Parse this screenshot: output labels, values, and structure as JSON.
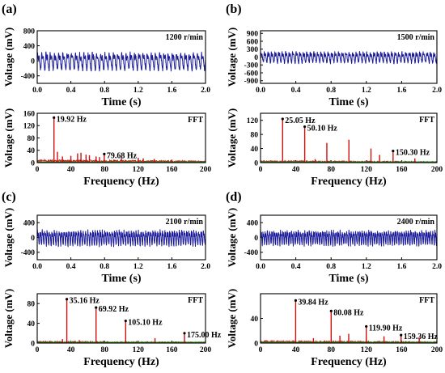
{
  "colors": {
    "time_signal": "#1a1a9a",
    "fft_line": "#cc1111",
    "fft_fill": "#f6c4de",
    "fft_baseline": "#1a8a1a",
    "axis": "#000000"
  },
  "chart_data": [
    {
      "panel_label": "(a)",
      "time": {
        "type": "line",
        "annotation": "1200 r/min",
        "xlabel": "Time (s)",
        "ylabel": "Voltage (mV)",
        "xlim": [
          0,
          2.0
        ],
        "ylim": [
          -600,
          800
        ],
        "xticks": [
          0,
          0.4,
          0.8,
          1.2,
          1.6,
          2.0
        ],
        "xtick_labels": [
          "0.0",
          "0.4",
          "0.8",
          "1.2",
          "1.6",
          "2.0"
        ],
        "yticks": [
          -400,
          0,
          400,
          800
        ],
        "ytick_labels": [
          "-400",
          "0",
          "400",
          "800"
        ],
        "amplitude": 300,
        "rotation_hz": 20
      },
      "fft": {
        "type": "line",
        "annotation": "FFT",
        "xlabel": "Frequency (Hz)",
        "ylabel": "Voltage (mV)",
        "xlim": [
          0,
          200
        ],
        "ylim": [
          0,
          160
        ],
        "xticks": [
          0,
          40,
          80,
          120,
          160,
          200
        ],
        "xtick_labels": [
          "0",
          "40",
          "80",
          "120",
          "160",
          "200"
        ],
        "yticks": [
          0,
          40,
          80,
          120,
          160
        ],
        "ytick_labels": [
          "0",
          "40",
          "80",
          "120",
          "160"
        ],
        "noise_level": 10,
        "peaks": [
          {
            "f": 19.92,
            "v": 146,
            "label": "19.92 Hz"
          },
          {
            "f": 79.68,
            "v": 28,
            "label": "79.68 Hz"
          },
          {
            "f": 24,
            "v": 35
          },
          {
            "f": 30,
            "v": 20
          },
          {
            "f": 40,
            "v": 22
          },
          {
            "f": 48,
            "v": 30
          },
          {
            "f": 52,
            "v": 32
          },
          {
            "f": 58,
            "v": 26
          },
          {
            "f": 62,
            "v": 24
          },
          {
            "f": 70,
            "v": 20
          },
          {
            "f": 74,
            "v": 18
          },
          {
            "f": 100,
            "v": 15
          },
          {
            "f": 120,
            "v": 16
          },
          {
            "f": 126,
            "v": 14
          },
          {
            "f": 139,
            "v": 12
          },
          {
            "f": 160,
            "v": 10
          }
        ]
      }
    },
    {
      "panel_label": "(b)",
      "time": {
        "type": "line",
        "annotation": "1500 r/min",
        "xlabel": "Time (s)",
        "ylabel": "Voltage (mV)",
        "xlim": [
          0,
          2.0
        ],
        "ylim": [
          -1000,
          1000
        ],
        "xticks": [
          0,
          0.4,
          0.8,
          1.2,
          1.6,
          2.0
        ],
        "xtick_labels": [
          "0.0",
          "0.4",
          "0.8",
          "1.2",
          "1.6",
          "2.0"
        ],
        "yticks": [
          -900,
          -600,
          -300,
          0,
          300,
          600,
          900
        ],
        "ytick_labels": [
          "-900",
          "-600",
          "-300",
          "0",
          "300",
          "600",
          "900"
        ],
        "amplitude": 280,
        "rotation_hz": 25
      },
      "fft": {
        "type": "line",
        "annotation": "FFT",
        "xlabel": "Frequency (Hz)",
        "ylabel": "Voltage (mV)",
        "xlim": [
          0,
          200
        ],
        "ylim": [
          0,
          140
        ],
        "xticks": [
          0,
          40,
          80,
          120,
          160,
          200
        ],
        "xtick_labels": [
          "0",
          "40",
          "80",
          "120",
          "160",
          "200"
        ],
        "yticks": [
          0,
          40,
          80,
          120
        ],
        "ytick_labels": [
          "0",
          "40",
          "80",
          "120"
        ],
        "noise_level": 6,
        "peaks": [
          {
            "f": 25.05,
            "v": 124,
            "label": "25.05 Hz"
          },
          {
            "f": 50.1,
            "v": 102,
            "label": "50.10 Hz"
          },
          {
            "f": 150.3,
            "v": 33,
            "label": "150.30 Hz"
          },
          {
            "f": 75.2,
            "v": 56
          },
          {
            "f": 100.2,
            "v": 65
          },
          {
            "f": 125.2,
            "v": 40
          },
          {
            "f": 135,
            "v": 22
          },
          {
            "f": 175,
            "v": 12
          },
          {
            "f": 62,
            "v": 10
          }
        ]
      }
    },
    {
      "panel_label": "(c)",
      "time": {
        "type": "line",
        "annotation": "2100 r/min",
        "xlabel": "Time (s)",
        "ylabel": "Voltage (mV)",
        "xlim": [
          0,
          2.0
        ],
        "ylim": [
          -600,
          600
        ],
        "xticks": [
          0,
          0.4,
          0.8,
          1.2,
          1.6,
          2.0
        ],
        "xtick_labels": [
          "0.0",
          "0.4",
          "0.8",
          "1.2",
          "1.6",
          "2.0"
        ],
        "yticks": [
          -400,
          0,
          400
        ],
        "ytick_labels": [
          "-400",
          "0",
          "400"
        ],
        "amplitude": 270,
        "rotation_hz": 35
      },
      "fft": {
        "type": "line",
        "annotation": "FFT",
        "xlabel": "Frequency (Hz)",
        "ylabel": "Voltage (mV)",
        "xlim": [
          0,
          200
        ],
        "ylim": [
          0,
          100
        ],
        "xticks": [
          0,
          40,
          80,
          120,
          160,
          200
        ],
        "xtick_labels": [
          "0",
          "40",
          "80",
          "120",
          "160",
          "200"
        ],
        "yticks": [
          0,
          40,
          80
        ],
        "ytick_labels": [
          "0",
          "40",
          "80"
        ],
        "noise_level": 4,
        "peaks": [
          {
            "f": 35.16,
            "v": 89,
            "label": "35.16 Hz"
          },
          {
            "f": 69.92,
            "v": 72,
            "label": "69.92 Hz"
          },
          {
            "f": 105.1,
            "v": 45,
            "label": "105.10 Hz"
          },
          {
            "f": 175.0,
            "v": 20,
            "label": "175.00 Hz"
          },
          {
            "f": 140,
            "v": 10
          },
          {
            "f": 30,
            "v": 8
          },
          {
            "f": 50,
            "v": 6
          }
        ]
      }
    },
    {
      "panel_label": "(d)",
      "time": {
        "type": "line",
        "annotation": "2400 r/min",
        "xlabel": "Time (s)",
        "ylabel": "Voltage (mV)",
        "xlim": [
          0,
          2.0
        ],
        "ylim": [
          -600,
          600
        ],
        "xticks": [
          0,
          0.4,
          0.8,
          1.2,
          1.6,
          2.0
        ],
        "xtick_labels": [
          "0.0",
          "0.4",
          "0.8",
          "1.2",
          "1.6",
          "2.0"
        ],
        "yticks": [
          -400,
          0,
          400
        ],
        "ytick_labels": [
          "-400",
          "0",
          "400"
        ],
        "amplitude": 260,
        "rotation_hz": 40
      },
      "fft": {
        "type": "line",
        "annotation": "FFT",
        "xlabel": "Frequency (Hz)",
        "ylabel": "Voltage (mV)",
        "xlim": [
          0,
          200
        ],
        "ylim": [
          0,
          80
        ],
        "xticks": [
          0,
          40,
          80,
          120,
          160,
          200
        ],
        "xtick_labels": [
          "0",
          "40",
          "80",
          "120",
          "160",
          "200"
        ],
        "yticks": [
          0,
          40
        ],
        "ytick_labels": [
          "0",
          "40"
        ],
        "noise_level": 4,
        "peaks": [
          {
            "f": 39.84,
            "v": 69,
            "label": "39.84 Hz"
          },
          {
            "f": 80.08,
            "v": 52,
            "label": "80.08 Hz"
          },
          {
            "f": 119.9,
            "v": 27,
            "label": "119.90 Hz"
          },
          {
            "f": 159.36,
            "v": 13,
            "label": "159.36 Hz"
          },
          {
            "f": 100,
            "v": 15
          },
          {
            "f": 90,
            "v": 12
          },
          {
            "f": 140,
            "v": 11
          },
          {
            "f": 60,
            "v": 8
          },
          {
            "f": 180,
            "v": 9
          }
        ]
      }
    }
  ]
}
